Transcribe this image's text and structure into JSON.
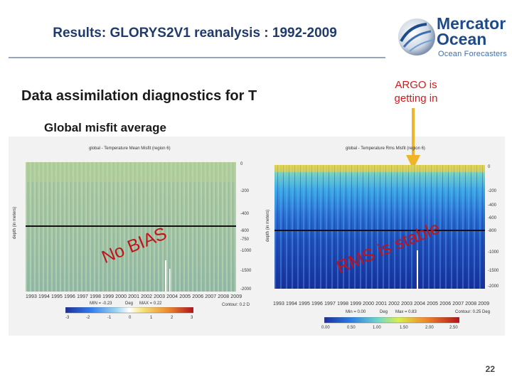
{
  "slide": {
    "title": "Results: GLORYS2V1 reanalysis : 1992-2009",
    "subtitle": "Data assimilation diagnostics for T",
    "section_label": "Global misfit average",
    "argo_note_line1": "ARGO is",
    "argo_note_line2": "getting in",
    "page_number": "22"
  },
  "logo": {
    "name_line1": "Mercator",
    "name_line2": "Ocean",
    "tagline": "Ocean Forecasters"
  },
  "colors": {
    "title": "#1f3a6b",
    "annotation_red": "#c0141b",
    "argo_arrow": "#f0b429"
  },
  "plots": {
    "left": {
      "title": "global - Temperature Mean Misfit (region 6)",
      "y_axis_label": "depth (in meters)",
      "y_ticks": [
        "0",
        "-200",
        "-400",
        "-600",
        "-750",
        "-1000",
        "-1500",
        "-2000"
      ],
      "x_ticks": "1993 1994 1995 1996 1997 1998 1999 2000 2001 2002 2003 2004 2005 2006 2007 2008 2009",
      "colorbar_unit": "Deg",
      "colorbar_ticks": [
        "-3",
        "-2",
        "-1",
        "0",
        "1",
        "2",
        "3"
      ],
      "stat_min": "MIN = -0.23",
      "stat_max": "MAX = 0.22",
      "contour": "Contour: 0.2 D",
      "overlay": "No BIAS"
    },
    "right": {
      "title": "global - Temperature Rms Misfit (region 6)",
      "y_axis_label": "depth (in meters)",
      "y_ticks": [
        "0",
        "-200",
        "-400",
        "-600",
        "-800",
        "-1000",
        "-1500",
        "-2000"
      ],
      "x_ticks": "1993 1994 1995 1996 1997 1998 1999 2000 2001 2002 2003 2004 2005 2006 2007 2008 2009",
      "colorbar_unit": "Deg",
      "colorbar_ticks": [
        "0.00",
        "0.50",
        "1.00",
        "1.50",
        "2.00",
        "2.50"
      ],
      "stat_min": "Min = 0.00",
      "stat_max": "Max = 0.83",
      "contour": "Contour: 0.25 Deg",
      "overlay": "RMS is stable"
    }
  }
}
